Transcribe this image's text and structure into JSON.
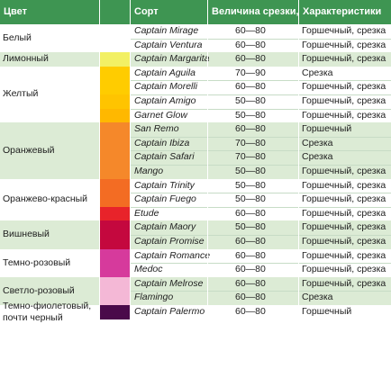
{
  "header": {
    "color_label": "Цвет",
    "sort_label": "Сорт",
    "size_label": "Величина срезки, см",
    "char_label": "Характеристики"
  },
  "groups": [
    {
      "name": "Белый",
      "bg": "#ffffff",
      "rows": [
        {
          "sort": "Captain Mirage",
          "size": "60—80",
          "char": "Горшечный, срезка",
          "swatch": "#ffffff"
        },
        {
          "sort": "Captain Ventura",
          "size": "60—80",
          "char": "Горшечный, срезка",
          "swatch": "#ffffff"
        }
      ]
    },
    {
      "name": "Лимонный",
      "bg": "#dcebd5",
      "rows": [
        {
          "sort": "Captain Margarita",
          "size": "60—80",
          "char": "Горшечный, срезка",
          "swatch": "#f2f064"
        }
      ]
    },
    {
      "name": "Желтый",
      "bg": "#ffffff",
      "rows": [
        {
          "sort": "Captain Aguila",
          "size": "70—90",
          "char": "Срезка",
          "swatch": "#ffcc00"
        },
        {
          "sort": "Captain Morelli",
          "size": "60—80",
          "char": "Горшечный, срезка",
          "swatch": "#ffcc00"
        },
        {
          "sort": "Captain Amigo",
          "size": "50—80",
          "char": "Горшечный, срезка",
          "swatch": "#ffc400"
        },
        {
          "sort": "Garnet Glow",
          "size": "50—80",
          "char": "Горшечный, срезка",
          "swatch": "#ffb800"
        }
      ]
    },
    {
      "name": "Оранжевый",
      "bg": "#dcebd5",
      "rows": [
        {
          "sort": "San Remo",
          "size": "60—80",
          "char": "Горшечный",
          "swatch": "#f5882a"
        },
        {
          "sort": "Captain Ibiza",
          "size": "70—80",
          "char": "Срезка",
          "swatch": "#f5882a"
        },
        {
          "sort": "Captain Safari",
          "size": "70—80",
          "char": "Срезка",
          "swatch": "#f5882a"
        },
        {
          "sort": "Mango",
          "size": "50—80",
          "char": "Горшечный, срезка",
          "swatch": "#f5882a"
        }
      ]
    },
    {
      "name": "Оранжево-красный",
      "bg": "#ffffff",
      "rows": [
        {
          "sort": "Captain Trinity",
          "size": "50—80",
          "char": "Горшечный, срезка",
          "swatch": "#f36c23"
        },
        {
          "sort": "Captain Fuego",
          "size": "50—80",
          "char": "Горшечный, срезка",
          "swatch": "#f36c23"
        },
        {
          "sort": "Etude",
          "size": "60—80",
          "char": "Горшечный, срезка",
          "swatch": "#e8232a"
        }
      ]
    },
    {
      "name": "Вишневый",
      "bg": "#dcebd5",
      "rows": [
        {
          "sort": "Captain Maory",
          "size": "50—80",
          "char": "Горшечный, срезка",
          "swatch": "#c4083e"
        },
        {
          "sort": "Captain Promise",
          "size": "60—80",
          "char": "Горшечный, срезка",
          "swatch": "#c4083e"
        }
      ]
    },
    {
      "name": "Темно-розовый",
      "bg": "#ffffff",
      "rows": [
        {
          "sort": "Captain Romance",
          "size": "60—80",
          "char": "Горшечный, срезка",
          "swatch": "#d63a9c"
        },
        {
          "sort": "Medoc",
          "size": "60—80",
          "char": "Горшечный, срезка",
          "swatch": "#d63a9c"
        }
      ]
    },
    {
      "name": "Светло-розовый",
      "bg": "#dcebd5",
      "rows": [
        {
          "sort": "Captain Melrose",
          "size": "60—80",
          "char": "Горшечный, срезка",
          "swatch": "#f4b8d6"
        },
        {
          "sort": "Flamingo",
          "size": "60—80",
          "char": "Срезка",
          "swatch": "#f4b8d6"
        }
      ]
    },
    {
      "name": "Темно-фиолетовый, почти черный",
      "bg": "#ffffff",
      "rows": [
        {
          "sort": "Captain Palermo",
          "size": "60—80",
          "char": "Горшечный",
          "swatch": "#4a0a4a"
        }
      ]
    }
  ]
}
